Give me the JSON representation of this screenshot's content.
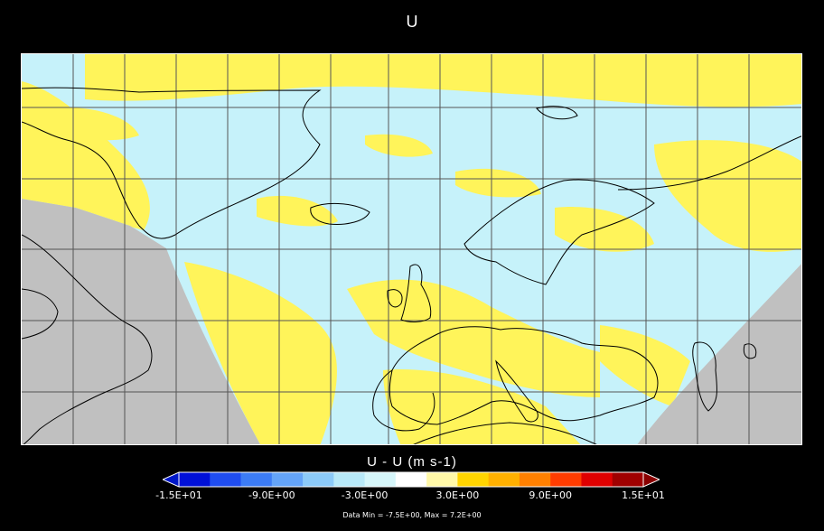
{
  "title": "U",
  "colorbar": {
    "title": "U - U  (m s-1)",
    "tick_labels": [
      "-1.5E+01",
      "-9.0E+00",
      "-3.0E+00",
      "3.0E+00",
      "9.0E+00",
      "1.5E+01"
    ],
    "tick_values": [
      -15,
      -9,
      -3,
      3,
      9,
      15
    ],
    "range": [
      -15,
      15
    ],
    "bins": [
      -15,
      -13,
      -11,
      -9,
      -7,
      -5,
      -3,
      -1,
      1,
      3,
      5,
      7,
      9,
      11,
      13,
      15
    ],
    "colors": [
      "#0010d8",
      "#1f4df0",
      "#3c7cf5",
      "#64a4f8",
      "#8ccaf8",
      "#b8e9f8",
      "#d6f6fa",
      "#ffffff",
      "#fff8a8",
      "#ffd400",
      "#ffb000",
      "#ff8000",
      "#ff3c00",
      "#e00000",
      "#a00000"
    ],
    "under_color": "#0018c8",
    "over_color": "#8a0000"
  },
  "data_minmax": "Data Min = -7.5E+00, Max = 7.2E+00",
  "map": {
    "background_color": "#c0c0c0",
    "domain_fill": "#c6f2fa",
    "positive_fill": "#fff45a",
    "coastline_color": "#000000",
    "grid_color": "#555555"
  }
}
